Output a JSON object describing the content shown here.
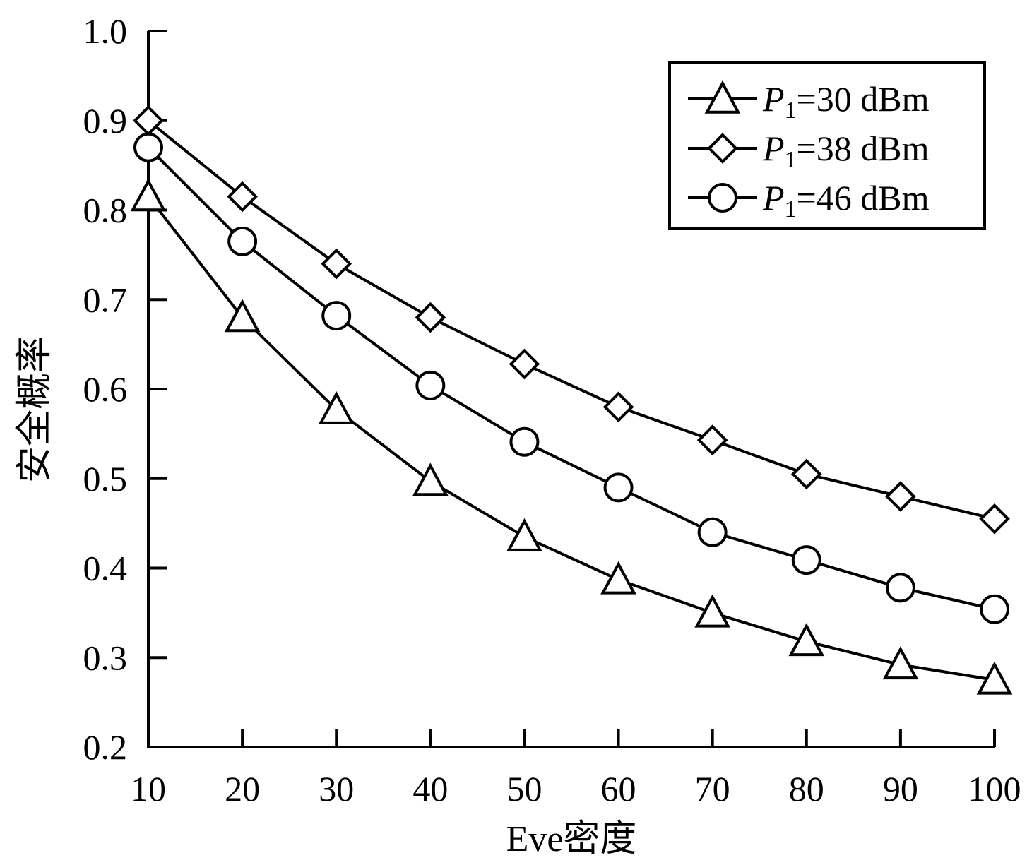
{
  "chart_data": {
    "type": "line",
    "x": [
      10,
      20,
      30,
      40,
      50,
      60,
      70,
      80,
      90,
      100
    ],
    "xlabel": "Eve密度",
    "ylabel": "安全概率",
    "xlim": [
      10,
      100
    ],
    "ylim": [
      0.2,
      1.0
    ],
    "xticks": [
      "10",
      "20",
      "30",
      "40",
      "50",
      "60",
      "70",
      "80",
      "90",
      "100"
    ],
    "yticks": [
      "0.2",
      "0.3",
      "0.4",
      "0.5",
      "0.6",
      "0.7",
      "0.8",
      "0.9",
      "1.0"
    ],
    "grid": false,
    "legend_position": "top-right",
    "series": [
      {
        "name": "P1=30 dBm",
        "name_symbol": "P",
        "name_sub": "1",
        "name_rest": "=30 dBm",
        "marker": "triangle",
        "values": [
          0.815,
          0.68,
          0.577,
          0.497,
          0.435,
          0.387,
          0.35,
          0.318,
          0.292,
          0.275
        ]
      },
      {
        "name": "P1=38 dBm",
        "name_symbol": "P",
        "name_sub": "1",
        "name_rest": "=38 dBm",
        "marker": "diamond",
        "values": [
          0.9,
          0.815,
          0.74,
          0.68,
          0.628,
          0.58,
          0.543,
          0.505,
          0.48,
          0.455
        ]
      },
      {
        "name": "P1=46 dBm",
        "name_symbol": "P",
        "name_sub": "1",
        "name_rest": "=46 dBm",
        "marker": "circle",
        "values": [
          0.87,
          0.765,
          0.682,
          0.604,
          0.541,
          0.49,
          0.44,
          0.409,
          0.378,
          0.354
        ]
      }
    ]
  }
}
